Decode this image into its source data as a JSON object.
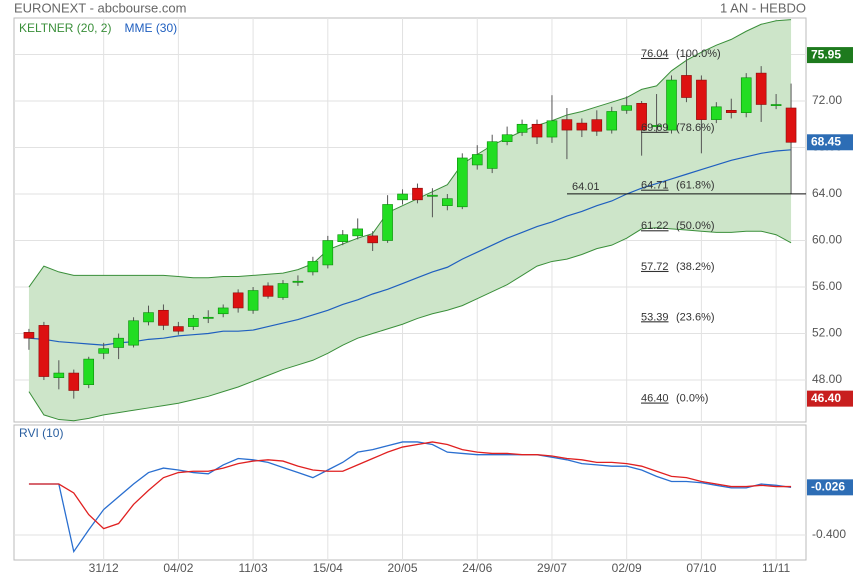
{
  "header": {
    "source": "EURONEXT - abcbourse.com",
    "period": "1 AN - HEBDO"
  },
  "chart_data": [
    {
      "type": "candlestick",
      "categories": [
        null,
        null,
        null,
        null,
        null,
        "31/12",
        null,
        null,
        null,
        null,
        "04/02",
        null,
        null,
        null,
        null,
        "11/03",
        null,
        null,
        null,
        null,
        "15/04",
        null,
        null,
        null,
        null,
        "20/05",
        null,
        null,
        null,
        null,
        "24/06",
        null,
        null,
        null,
        null,
        "29/07",
        null,
        null,
        null,
        null,
        "02/09",
        null,
        null,
        null,
        null,
        "07/10",
        null,
        null,
        null,
        null,
        "11/11",
        null
      ],
      "open": [
        52.1,
        52.7,
        48.2,
        48.6,
        47.6,
        50.3,
        50.8,
        51.0,
        53.0,
        54.0,
        52.6,
        52.6,
        53.3,
        53.7,
        55.5,
        54.0,
        56.1,
        55.1,
        56.4,
        57.3,
        57.9,
        59.9,
        60.4,
        60.4,
        60.0,
        63.5,
        64.5,
        63.8,
        63.0,
        62.9,
        66.5,
        66.2,
        68.5,
        69.3,
        70.0,
        68.9,
        70.4,
        70.1,
        70.4,
        69.5,
        71.2,
        71.8,
        69.8,
        69.5,
        74.2,
        73.8,
        70.4,
        71.2,
        71.0,
        74.4,
        71.6,
        71.4
      ],
      "high": [
        52.4,
        53.0,
        49.7,
        48.9,
        50.0,
        51.2,
        52.0,
        53.4,
        54.4,
        54.5,
        53.0,
        53.6,
        54.0,
        54.5,
        55.8,
        56.0,
        56.4,
        56.6,
        57.0,
        58.6,
        60.4,
        60.9,
        61.9,
        60.8,
        63.9,
        64.4,
        64.9,
        64.5,
        64.0,
        67.5,
        68.2,
        69.1,
        69.8,
        70.4,
        70.4,
        72.5,
        71.4,
        70.5,
        71.2,
        71.5,
        72.4,
        72.0,
        72.6,
        74.2,
        76.04,
        74.2,
        71.9,
        72.2,
        74.4,
        75.0,
        72.6,
        73.5
      ],
      "low": [
        50.6,
        48.0,
        47.2,
        46.4,
        47.3,
        49.8,
        49.8,
        50.8,
        52.7,
        52.3,
        51.9,
        52.3,
        52.9,
        53.4,
        53.8,
        53.7,
        55.0,
        54.9,
        56.1,
        57.0,
        57.6,
        59.6,
        60.1,
        59.1,
        59.8,
        63.1,
        63.2,
        62.0,
        62.6,
        62.7,
        66.1,
        65.8,
        68.2,
        69.0,
        68.3,
        68.4,
        67.0,
        68.9,
        69.0,
        69.2,
        70.9,
        67.3,
        69.3,
        69.2,
        71.9,
        67.5,
        70.1,
        70.5,
        70.6,
        70.2,
        71.3,
        64.01
      ],
      "close": [
        51.6,
        48.3,
        48.6,
        47.1,
        49.8,
        50.7,
        51.6,
        53.1,
        53.8,
        52.7,
        52.2,
        53.3,
        53.4,
        54.2,
        54.2,
        55.7,
        55.2,
        56.3,
        56.5,
        58.2,
        60.0,
        60.5,
        61.0,
        59.8,
        63.1,
        64.0,
        63.5,
        63.9,
        63.6,
        67.1,
        67.4,
        68.5,
        69.1,
        70.0,
        68.9,
        70.3,
        69.5,
        69.5,
        69.4,
        71.1,
        71.6,
        69.5,
        69.9,
        73.8,
        72.3,
        70.4,
        71.5,
        71.0,
        74.0,
        71.7,
        71.7,
        68.45
      ],
      "up_color": "#22dd22",
      "down_color": "#dd1111",
      "series": [
        {
          "name": "KELTNER (20, 2)",
          "type": "band",
          "color": "#3a8f3a",
          "fill": "#cde5c9",
          "upper": [
            56.0,
            57.8,
            57.3,
            57.0,
            57.0,
            57.0,
            57.0,
            57.0,
            57.0,
            57.0,
            56.9,
            56.8,
            56.8,
            56.9,
            56.9,
            57.0,
            57.1,
            57.2,
            57.5,
            58.0,
            59.2,
            59.7,
            60.2,
            60.6,
            62.4,
            63.0,
            63.6,
            64.2,
            64.8,
            66.6,
            67.4,
            68.2,
            68.8,
            69.4,
            69.9,
            70.3,
            70.8,
            71.1,
            71.5,
            71.9,
            72.3,
            73.0,
            73.3,
            74.6,
            75.5,
            76.2,
            76.8,
            77.3,
            78.0,
            78.6,
            78.9,
            79.0
          ],
          "lower": [
            47.0,
            45.0,
            44.6,
            44.5,
            44.7,
            45.0,
            45.2,
            45.4,
            45.6,
            45.8,
            46.0,
            46.3,
            46.6,
            47.0,
            47.4,
            47.9,
            48.4,
            48.9,
            49.3,
            49.7,
            50.3,
            51.0,
            51.6,
            52.0,
            52.4,
            52.8,
            53.3,
            53.7,
            54.0,
            54.4,
            55.0,
            55.6,
            56.2,
            57.0,
            57.8,
            58.2,
            58.4,
            58.8,
            59.3,
            59.6,
            60.2,
            61.0,
            61.1,
            61.0,
            60.9,
            60.8,
            60.7,
            60.7,
            60.8,
            60.8,
            60.5,
            59.8
          ]
        },
        {
          "name": "MME (30)",
          "type": "line",
          "color": "#1f5fbf",
          "values": [
            51.6,
            51.5,
            51.3,
            51.2,
            51.1,
            51.0,
            51.2,
            51.3,
            51.5,
            51.6,
            51.8,
            51.9,
            52.0,
            52.2,
            52.2,
            52.3,
            52.6,
            52.9,
            53.2,
            53.6,
            54.0,
            54.5,
            54.9,
            55.4,
            55.8,
            56.3,
            56.8,
            57.3,
            57.7,
            58.4,
            59.0,
            59.6,
            60.2,
            60.7,
            61.2,
            61.6,
            62.1,
            62.5,
            63.0,
            63.4,
            64.0,
            64.5,
            64.9,
            65.3,
            65.7,
            66.1,
            66.5,
            66.9,
            67.2,
            67.5,
            67.7,
            67.8
          ]
        }
      ],
      "fibonacci": [
        {
          "value": 76.04,
          "percent_label": "(100.0%)"
        },
        {
          "value": 69.69,
          "percent_label": "(78.6%)"
        },
        {
          "value": 64.71,
          "percent_label": "(61.8%)"
        },
        {
          "value": 61.22,
          "percent_label": "(50.0%)"
        },
        {
          "value": 57.72,
          "percent_label": "(38.2%)"
        },
        {
          "value": 53.39,
          "percent_label": "(23.6%)"
        },
        {
          "value": 46.4,
          "label": "46.40",
          "percent_label": "(0.0%)"
        }
      ],
      "reference_line": 64.01,
      "markers": [
        {
          "value": 75.95,
          "color": "#1e7a1e"
        },
        {
          "value": 68.45,
          "color": "#2d6db5"
        },
        {
          "value": 46.4,
          "label": "46.40",
          "color": "#c81e1e"
        }
      ],
      "ylim": [
        44.39,
        79.14
      ],
      "yticks": [
        {
          "value": 48,
          "label": "48.00"
        },
        {
          "value": 52,
          "label": "52.00"
        },
        {
          "value": 56,
          "label": "56.00"
        },
        {
          "value": 60,
          "label": "60.00"
        },
        {
          "value": 64,
          "label": "64.00"
        },
        {
          "value": 68,
          "label": "68.00"
        },
        {
          "value": 72,
          "label": "72.00"
        },
        {
          "value": 76,
          "label": "76.00"
        }
      ],
      "grid": true
    },
    {
      "type": "line",
      "title": "RVI (10)",
      "series": [
        {
          "color": "#2a6fd0",
          "values": [
            0,
            0,
            0,
            -0.53,
            -0.36,
            -0.2,
            -0.1,
            0,
            0.09,
            0.125,
            0.11,
            0.09,
            0.08,
            0.15,
            0.2,
            0.19,
            0.17,
            0.13,
            0.09,
            0.05,
            0.11,
            0.17,
            0.25,
            0.27,
            0.3,
            0.33,
            0.33,
            0.31,
            0.25,
            0.24,
            0.23,
            0.23,
            0.23,
            0.23,
            0.23,
            0.21,
            0.19,
            0.16,
            0.15,
            0.14,
            0.14,
            0.11,
            0.06,
            0.02,
            0.02,
            0.01,
            -0.01,
            -0.03,
            -0.03,
            0,
            -0.01,
            -0.026
          ]
        },
        {
          "color": "#e02020",
          "values": [
            0,
            0,
            0,
            -0.07,
            -0.24,
            -0.35,
            -0.31,
            -0.16,
            -0.05,
            0.05,
            0.09,
            0.1,
            0.1,
            0.125,
            0.16,
            0.18,
            0.19,
            0.18,
            0.14,
            0.11,
            0.1,
            0.1,
            0.15,
            0.2,
            0.25,
            0.29,
            0.31,
            0.33,
            0.31,
            0.27,
            0.25,
            0.24,
            0.24,
            0.23,
            0.23,
            0.22,
            0.2,
            0.19,
            0.17,
            0.17,
            0.16,
            0.14,
            0.1,
            0.06,
            0.05,
            0.02,
            0,
            -0.02,
            -0.02,
            -0.01,
            -0.02,
            -0.02
          ]
        }
      ],
      "markers": [
        {
          "value": -0.026,
          "color": "#2d6db5"
        }
      ],
      "ylim": [
        -0.596,
        0.463
      ],
      "yticks": [
        {
          "value": -0.4,
          "label": "-0.400"
        }
      ],
      "grid": true
    }
  ]
}
